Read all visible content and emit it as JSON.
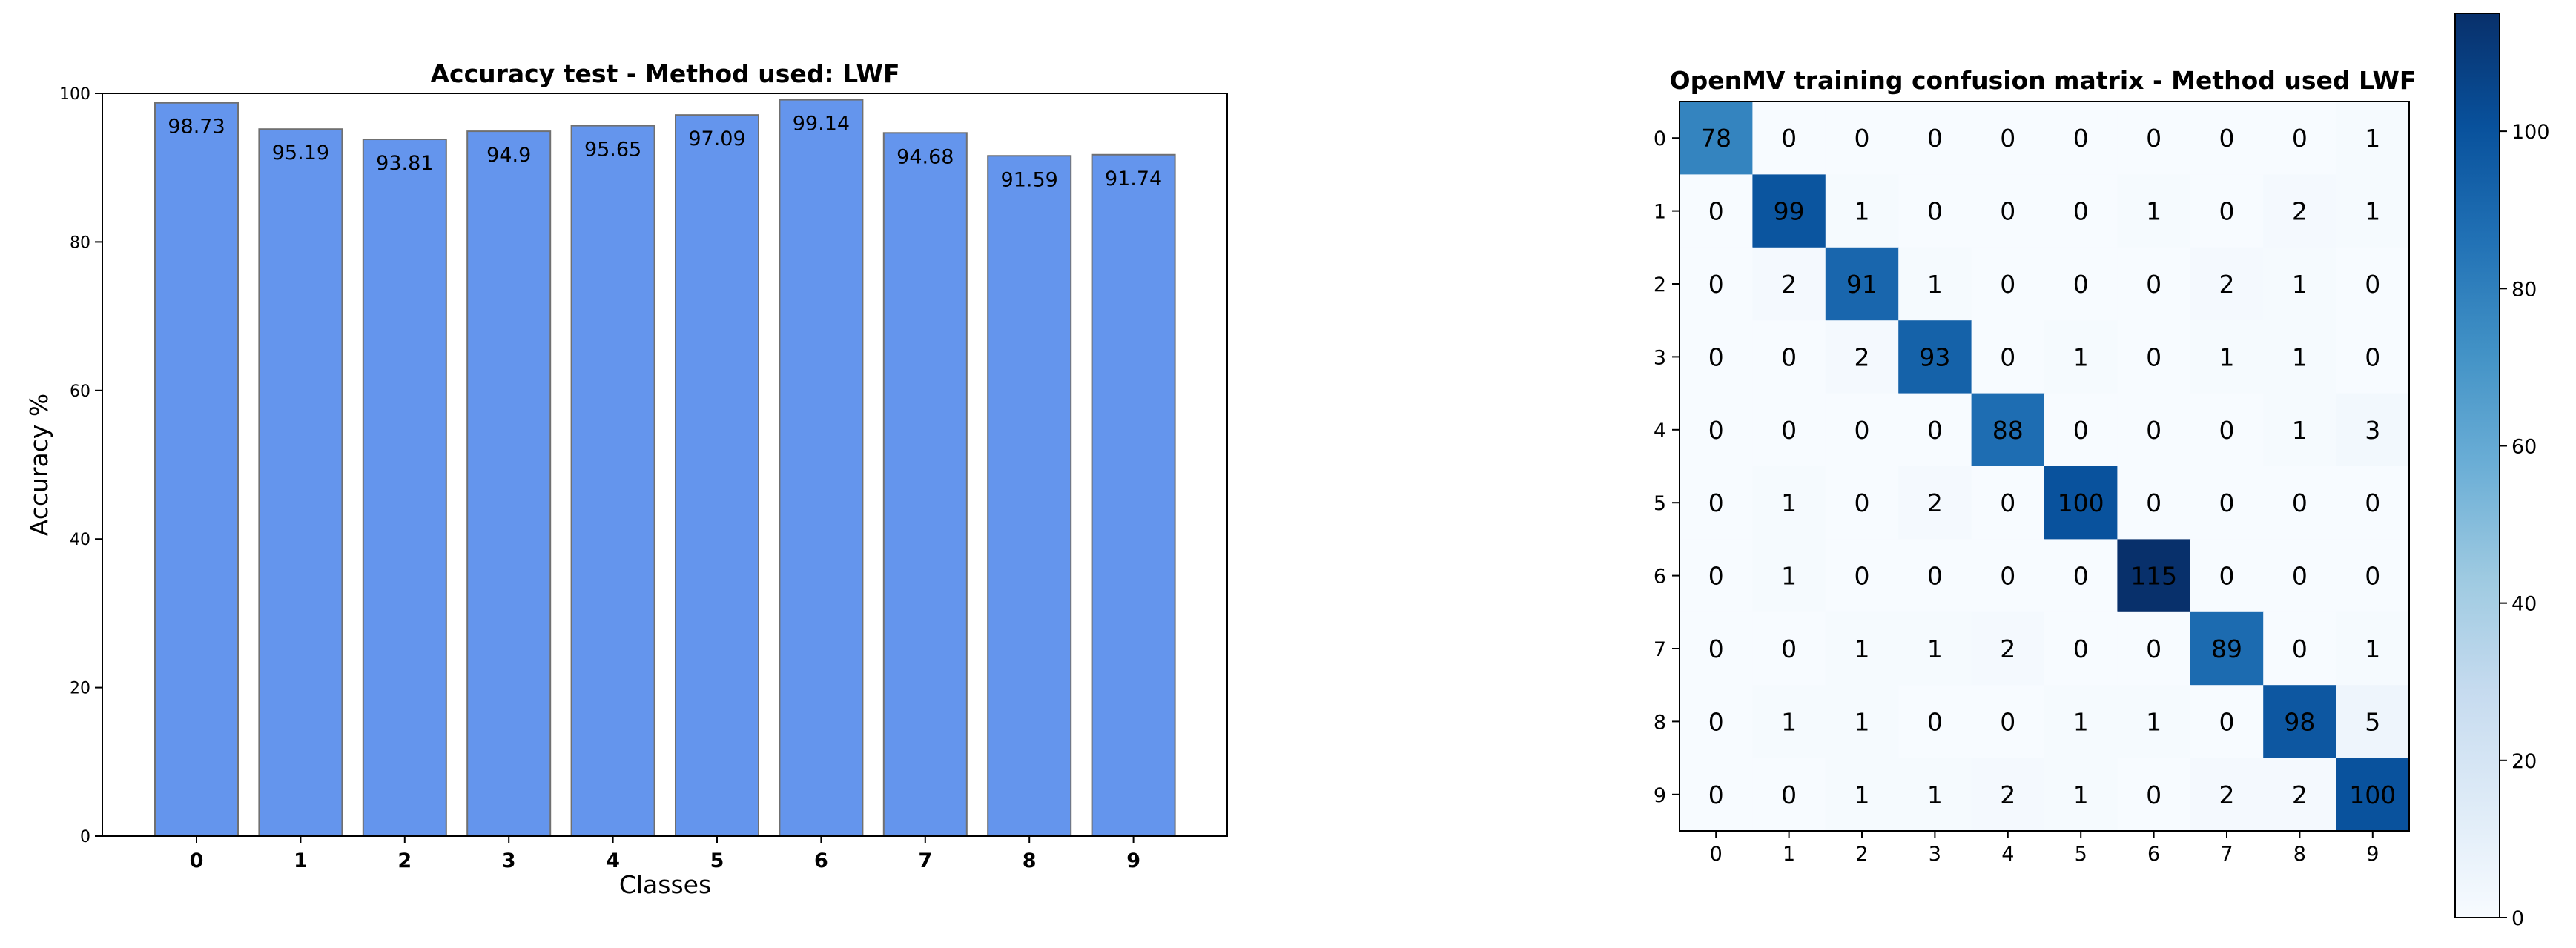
{
  "chart_data": [
    {
      "type": "bar",
      "title": "Accuracy test - Method used: LWF",
      "xlabel": "Classes",
      "ylabel": "Accuracy %",
      "categories": [
        "0",
        "1",
        "2",
        "3",
        "4",
        "5",
        "6",
        "7",
        "8",
        "9"
      ],
      "values": [
        98.73,
        95.19,
        93.81,
        94.9,
        95.65,
        97.09,
        99.14,
        94.68,
        91.59,
        91.74
      ],
      "value_labels": [
        "98.73",
        "95.19",
        "93.81",
        "94.9",
        "95.65",
        "97.09",
        "99.14",
        "94.68",
        "91.59",
        "91.74"
      ],
      "ylim": [
        0,
        100
      ],
      "yticks": [
        "0",
        "20",
        "40",
        "60",
        "80",
        "100"
      ],
      "bar_color": "#6495ED",
      "grid": false
    },
    {
      "type": "heatmap",
      "title": "OpenMV training confusion matrix - Method used LWF",
      "x_labels": [
        "0",
        "1",
        "2",
        "3",
        "4",
        "5",
        "6",
        "7",
        "8",
        "9"
      ],
      "y_labels": [
        "0",
        "1",
        "2",
        "3",
        "4",
        "5",
        "6",
        "7",
        "8",
        "9"
      ],
      "matrix": [
        [
          78,
          0,
          0,
          0,
          0,
          0,
          0,
          0,
          0,
          1
        ],
        [
          0,
          99,
          1,
          0,
          0,
          0,
          1,
          0,
          2,
          1
        ],
        [
          0,
          2,
          91,
          1,
          0,
          0,
          0,
          2,
          1,
          0
        ],
        [
          0,
          0,
          2,
          93,
          0,
          1,
          0,
          1,
          1,
          0
        ],
        [
          0,
          0,
          0,
          0,
          88,
          0,
          0,
          0,
          1,
          3
        ],
        [
          0,
          1,
          0,
          2,
          0,
          100,
          0,
          0,
          0,
          0
        ],
        [
          0,
          1,
          0,
          0,
          0,
          0,
          115,
          0,
          0,
          0
        ],
        [
          0,
          0,
          1,
          1,
          2,
          0,
          0,
          89,
          0,
          1
        ],
        [
          0,
          1,
          1,
          0,
          0,
          1,
          1,
          0,
          98,
          5
        ],
        [
          0,
          0,
          1,
          1,
          2,
          1,
          0,
          2,
          2,
          100
        ]
      ],
      "colormap": "Blues",
      "vmin": 0,
      "vmax": 115,
      "colorbar_ticks": [
        "0",
        "20",
        "40",
        "60",
        "80",
        "100"
      ]
    }
  ]
}
